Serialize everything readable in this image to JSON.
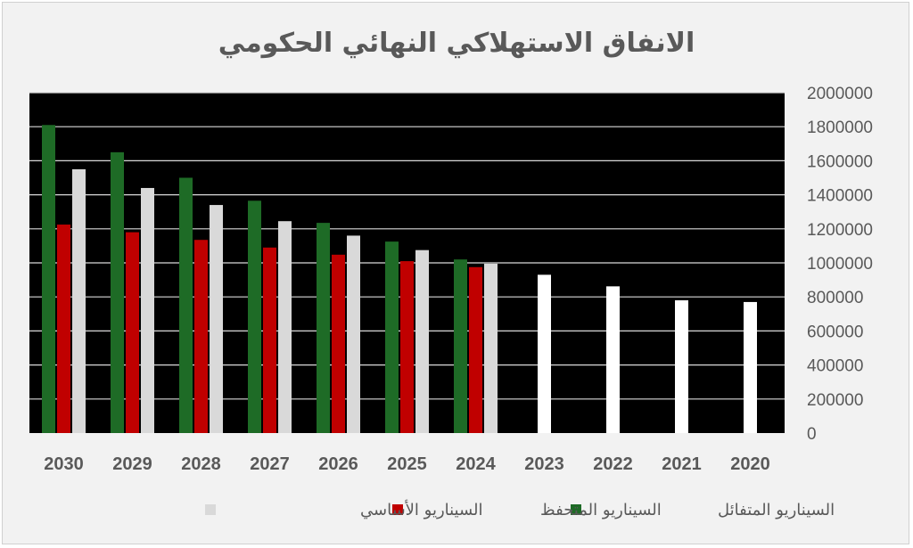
{
  "chart_data": {
    "type": "bar",
    "title": "الانفاق الاستهلاكي النهائي الحكومي",
    "xlabel": "",
    "ylabel": "",
    "categories": [
      "2030",
      "2029",
      "2028",
      "2027",
      "2026",
      "2025",
      "2024",
      "2023",
      "2022",
      "2021",
      "2020"
    ],
    "ylim": [
      0,
      2000000
    ],
    "yticks": [
      0,
      200000,
      400000,
      600000,
      800000,
      1000000,
      1200000,
      1400000,
      1600000,
      1800000,
      2000000
    ],
    "grid": true,
    "legend_position": "bottom",
    "y_axis_side": "right",
    "plot_background": "#000000",
    "historical": {
      "color": "#ffffff",
      "values": [
        null,
        null,
        null,
        null,
        null,
        null,
        null,
        930000,
        862000,
        780000,
        770000
      ]
    },
    "series": [
      {
        "name": "السيناريو المتفائل",
        "color": "#1e6b26",
        "values": [
          1810000,
          1650000,
          1500000,
          1365000,
          1235000,
          1125000,
          1020000,
          null,
          null,
          null,
          null
        ]
      },
      {
        "name": "السيناريو المتحفظ",
        "color": "#c00000",
        "values": [
          1225000,
          1180000,
          1135000,
          1090000,
          1048000,
          1010000,
          975000,
          null,
          null,
          null,
          null
        ]
      },
      {
        "name": "السيناريو الأساسي",
        "color": "#d9d9d9",
        "values": [
          1550000,
          1440000,
          1340000,
          1245000,
          1160000,
          1075000,
          995000,
          null,
          null,
          null,
          null
        ]
      }
    ]
  }
}
